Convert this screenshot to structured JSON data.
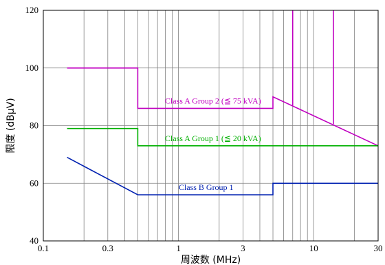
{
  "chart_data": {
    "type": "line",
    "xlabel": "周波数 (MHz)",
    "ylabel": "限度 (dBμV)",
    "x_scale": "log",
    "xlim": [
      0.1,
      30
    ],
    "ylim": [
      40,
      120
    ],
    "x_tick_labels": [
      {
        "value": 0.1,
        "label": "0.1"
      },
      {
        "value": 0.3,
        "label": "0.3"
      },
      {
        "value": 1,
        "label": "1"
      },
      {
        "value": 3,
        "label": "3"
      },
      {
        "value": 10,
        "label": "10"
      },
      {
        "value": 30,
        "label": "30"
      }
    ],
    "y_tick_labels": [
      {
        "value": 40,
        "label": "40"
      },
      {
        "value": 60,
        "label": "60"
      },
      {
        "value": 80,
        "label": "80"
      },
      {
        "value": 100,
        "label": "100"
      },
      {
        "value": 120,
        "label": "120"
      }
    ],
    "grid": true,
    "series": [
      {
        "name": "Class A Group 2 (≦ 75 kVA)",
        "color": "#c000c0",
        "points": [
          [
            0.15,
            100
          ],
          [
            0.5,
            100
          ],
          [
            0.5,
            86
          ],
          [
            5,
            86
          ],
          [
            5,
            90
          ],
          [
            30,
            73
          ]
        ],
        "spikes": [
          [
            7,
            87
          ],
          [
            14,
            80.5
          ]
        ]
      },
      {
        "name": "Class A Group 1 (≦ 20 kVA)",
        "color": "#00b000",
        "points": [
          [
            0.15,
            79
          ],
          [
            0.5,
            79
          ],
          [
            0.5,
            73
          ],
          [
            30,
            73
          ]
        ]
      },
      {
        "name": "Class B Group 1",
        "color": "#0020b0",
        "points": [
          [
            0.15,
            69
          ],
          [
            0.5,
            56
          ],
          [
            5,
            56
          ],
          [
            5,
            60
          ],
          [
            30,
            60
          ]
        ]
      }
    ],
    "series_labels": [
      {
        "text": "Class A Group 2 (≦ 75 kVA)",
        "x": 1.8,
        "y": 86,
        "color": "#c000c0"
      },
      {
        "text": "Class A Group 1 (≦ 20 kVA)",
        "x": 1.8,
        "y": 73,
        "color": "#00b000"
      },
      {
        "text": "Class B Group 1",
        "x": 1.6,
        "y": 56,
        "color": "#0020b0"
      }
    ]
  }
}
